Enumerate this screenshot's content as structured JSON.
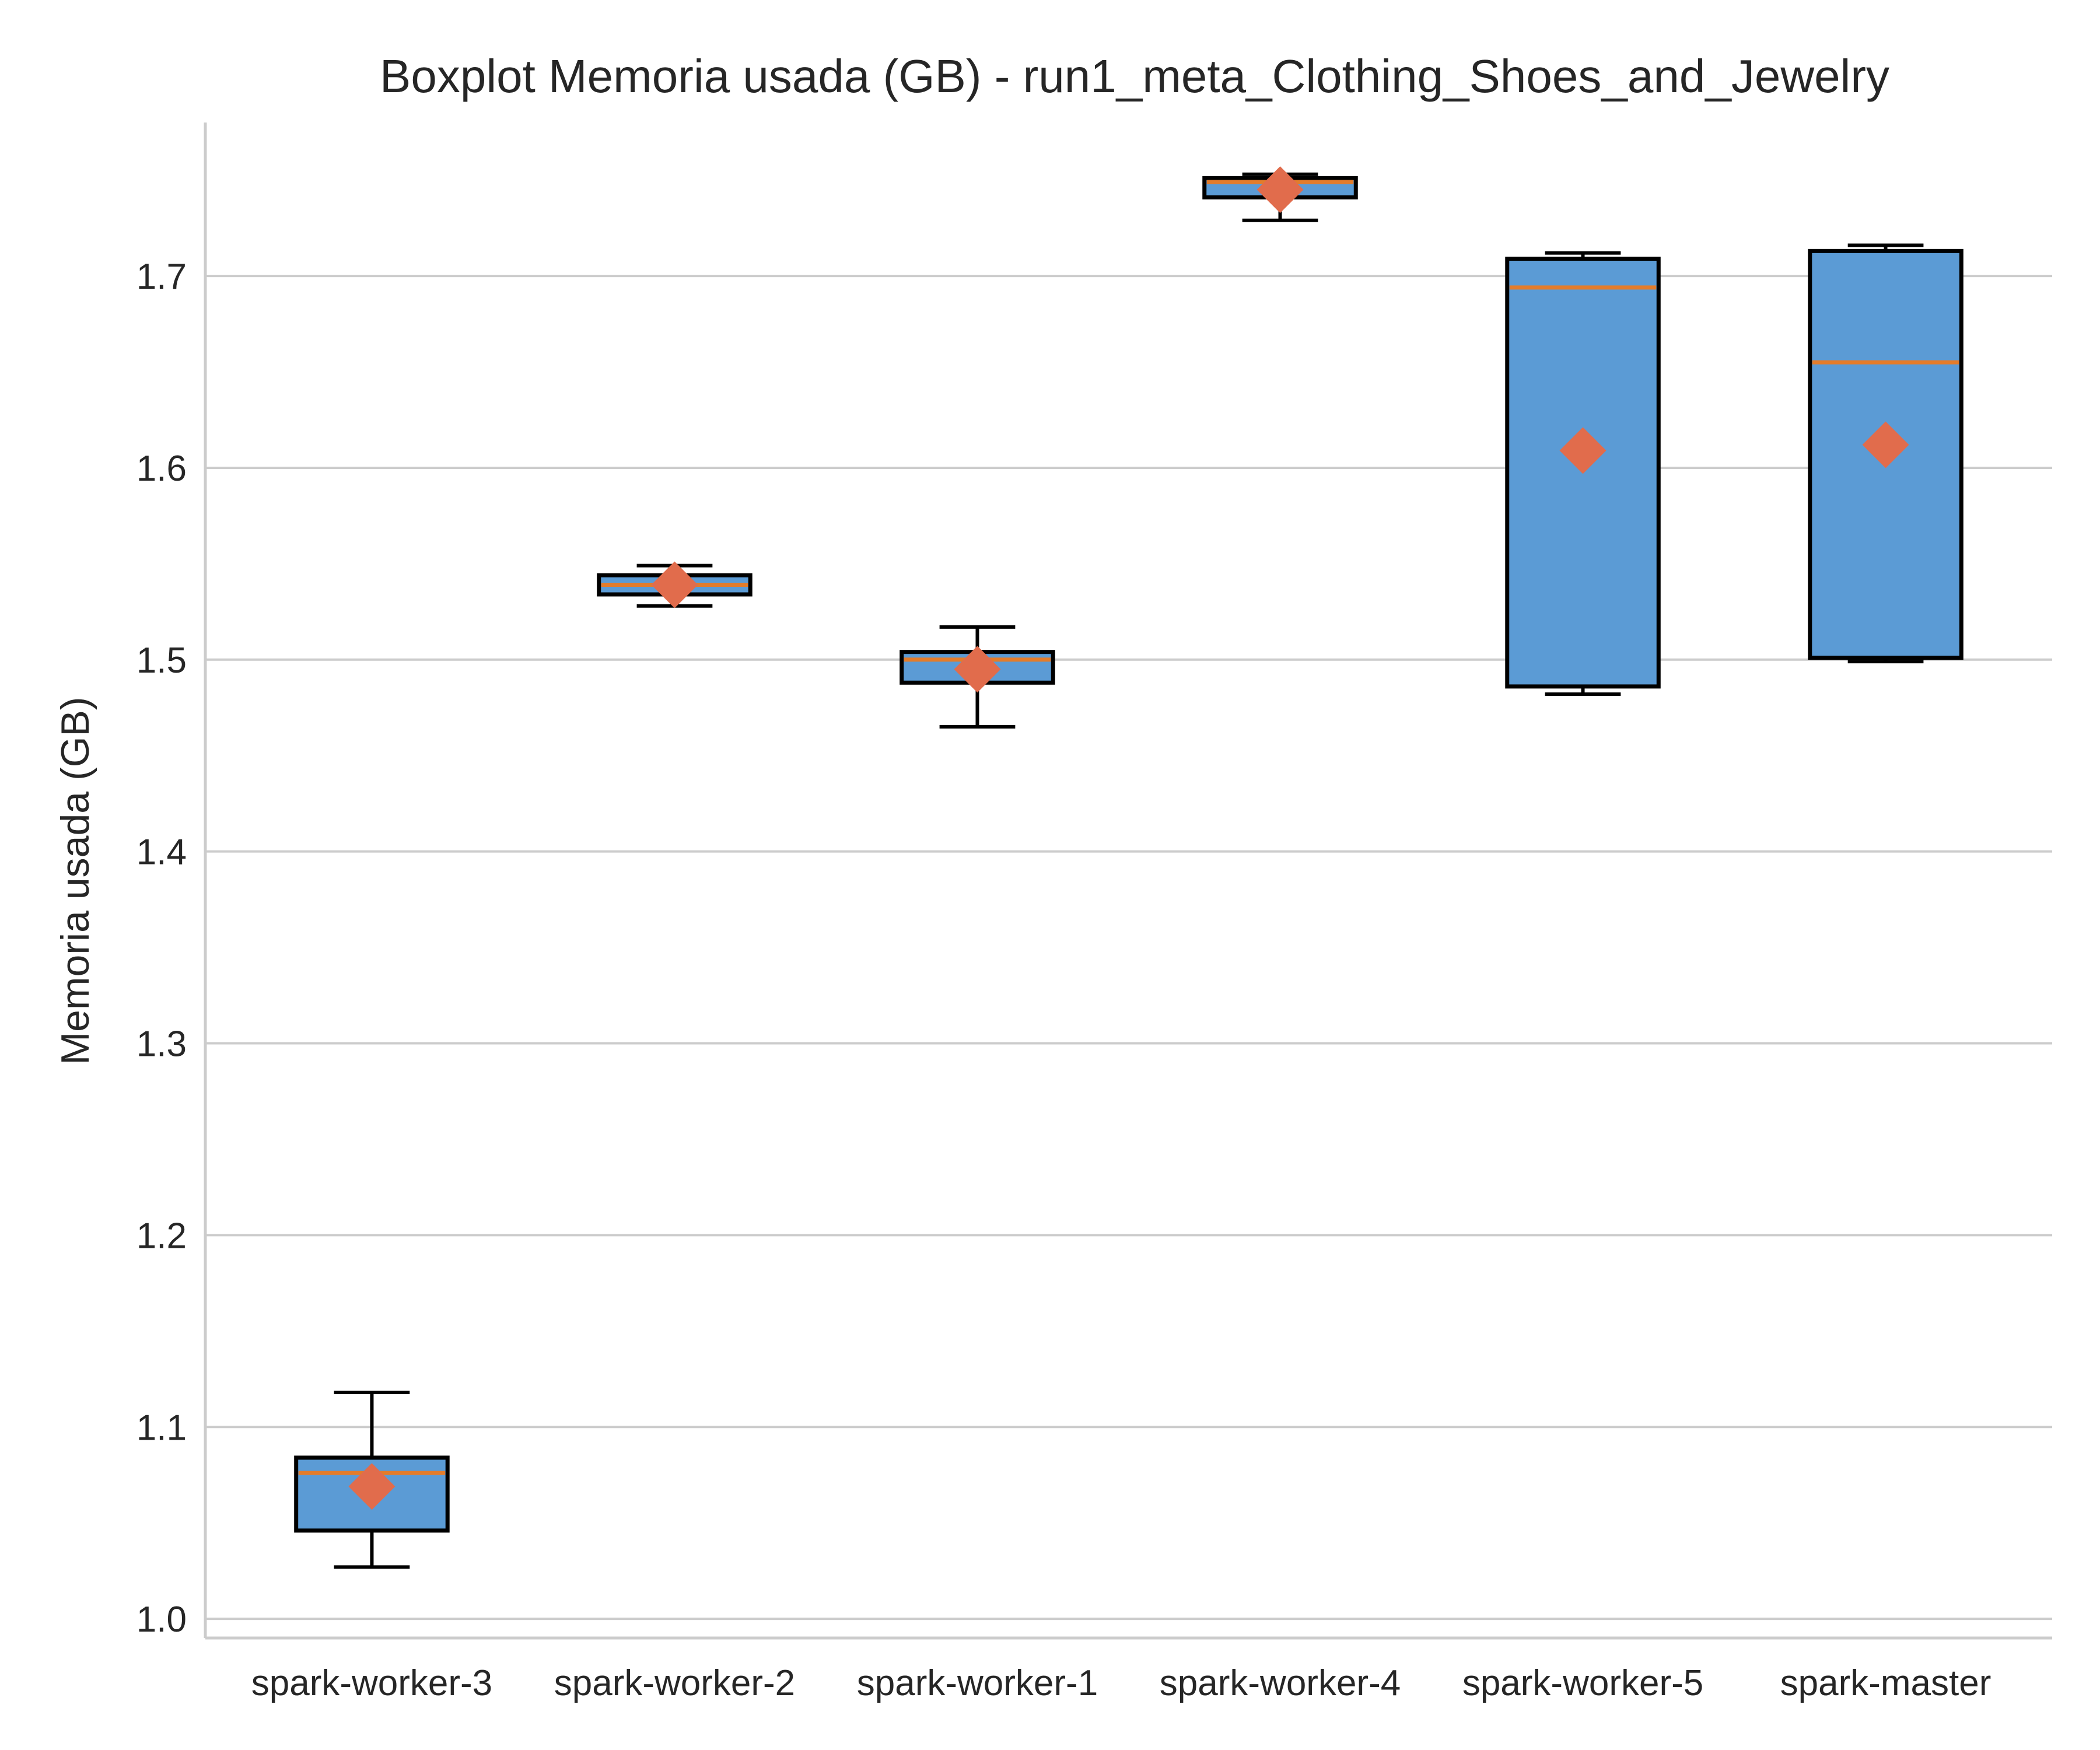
{
  "chart_data": {
    "type": "boxplot",
    "title": "Boxplot Memoria usada (GB) - run1_meta_Clothing_Shoes_and_Jewelry",
    "xlabel": "",
    "ylabel": "Memoria usada (GB)",
    "ylim": [
      0.99,
      1.78
    ],
    "yticks": [
      1.0,
      1.1,
      1.2,
      1.3,
      1.4,
      1.5,
      1.6,
      1.7
    ],
    "ytick_labels": [
      "1.0",
      "1.1",
      "1.2",
      "1.3",
      "1.4",
      "1.5",
      "1.6",
      "1.7"
    ],
    "grid": "horizontal",
    "categories": [
      "spark-worker-3",
      "spark-worker-2",
      "spark-worker-1",
      "spark-worker-4",
      "spark-worker-5",
      "spark-master"
    ],
    "boxes": [
      {
        "whisker_low": 1.027,
        "q1": 1.046,
        "median": 1.076,
        "q3": 1.084,
        "whisker_high": 1.118,
        "mean": 1.069
      },
      {
        "whisker_low": 1.528,
        "q1": 1.534,
        "median": 1.539,
        "q3": 1.544,
        "whisker_high": 1.549,
        "mean": 1.539
      },
      {
        "whisker_low": 1.465,
        "q1": 1.488,
        "median": 1.5,
        "q3": 1.504,
        "whisker_high": 1.517,
        "mean": 1.495
      },
      {
        "whisker_low": 1.729,
        "q1": 1.741,
        "median": 1.749,
        "q3": 1.751,
        "whisker_high": 1.753,
        "mean": 1.745
      },
      {
        "whisker_low": 1.482,
        "q1": 1.486,
        "median": 1.694,
        "q3": 1.709,
        "whisker_high": 1.712,
        "mean": 1.609
      },
      {
        "whisker_low": 1.499,
        "q1": 1.501,
        "median": 1.655,
        "q3": 1.713,
        "whisker_high": 1.716,
        "mean": 1.612
      }
    ],
    "colors": {
      "box_fill": "#5b9bd5",
      "box_edge": "#000000",
      "median": "#e37c2b",
      "mean_marker": "#e16c4c",
      "grid": "#cccccc",
      "axis": "#cccccc"
    }
  }
}
